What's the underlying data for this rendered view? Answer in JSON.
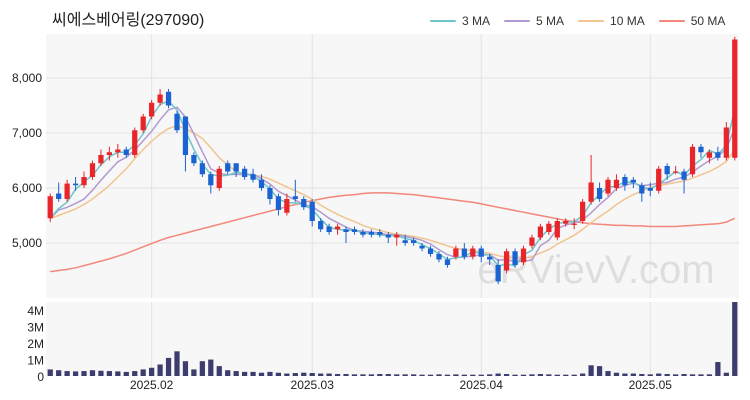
{
  "title": "씨에스베어링(297090)",
  "watermark": "eRVievV.com",
  "legend": [
    {
      "label": "3 MA",
      "color": "#6cc6c9"
    },
    {
      "label": "5 MA",
      "color": "#b19ad0"
    },
    {
      "label": "10 MA",
      "color": "#f2c48f"
    },
    {
      "label": "50 MA",
      "color": "#f2877a"
    }
  ],
  "colors": {
    "up": "#e8252b",
    "down": "#1b63d1",
    "volume": "#3c3c6e",
    "panel_bg": "#f7f7f7",
    "grid": "#e3e3e3"
  },
  "chart_data": [
    {
      "type": "candlestick",
      "title": "씨에스베어링(297090)",
      "ylim": [
        4000,
        8800
      ],
      "yticks": [
        5000,
        6000,
        7000,
        8000
      ],
      "ytick_labels": [
        "5,000",
        "6,000",
        "7,000",
        "8,000"
      ],
      "xticks": [
        {
          "index": 12,
          "label": "2025.02"
        },
        {
          "index": 31,
          "label": "2025.03"
        },
        {
          "index": 51,
          "label": "2025.04"
        },
        {
          "index": 71,
          "label": "2025.05"
        }
      ],
      "candles": [
        [
          5450,
          5900,
          5380,
          5850
        ],
        [
          5900,
          6100,
          5750,
          5800
        ],
        [
          5800,
          6150,
          5750,
          6080
        ],
        [
          6080,
          6200,
          5950,
          6050
        ],
        [
          6050,
          6300,
          6000,
          6200
        ],
        [
          6200,
          6500,
          6150,
          6450
        ],
        [
          6450,
          6700,
          6400,
          6600
        ],
        [
          6600,
          6750,
          6500,
          6650
        ],
        [
          6650,
          6800,
          6550,
          6700
        ],
        [
          6700,
          6750,
          6550,
          6600
        ],
        [
          6600,
          7100,
          6550,
          7050
        ],
        [
          7050,
          7350,
          7000,
          7300
        ],
        [
          7300,
          7600,
          7250,
          7550
        ],
        [
          7550,
          7800,
          7500,
          7700
        ],
        [
          7750,
          7800,
          7450,
          7500
        ],
        [
          7350,
          7400,
          7000,
          7050
        ],
        [
          7300,
          7300,
          6300,
          6600
        ],
        [
          6600,
          6650,
          6400,
          6450
        ],
        [
          6450,
          6500,
          6200,
          6250
        ],
        [
          6250,
          6300,
          5900,
          6050
        ],
        [
          6000,
          6400,
          5950,
          6350
        ],
        [
          6450,
          6500,
          6250,
          6300
        ],
        [
          6450,
          6450,
          6200,
          6300
        ],
        [
          6350,
          6400,
          6150,
          6200
        ],
        [
          6250,
          6350,
          6100,
          6150
        ],
        [
          6150,
          6250,
          5950,
          6000
        ],
        [
          6000,
          6050,
          5700,
          5800
        ],
        [
          5850,
          5900,
          5500,
          5600
        ],
        [
          5550,
          5900,
          5500,
          5800
        ],
        [
          5850,
          6150,
          5750,
          5800
        ],
        [
          5800,
          5850,
          5600,
          5650
        ],
        [
          5750,
          5800,
          5300,
          5400
        ],
        [
          5400,
          5450,
          5200,
          5250
        ],
        [
          5300,
          5350,
          5150,
          5200
        ],
        [
          5250,
          5350,
          5150,
          5300
        ],
        [
          5250,
          5300,
          5000,
          5200
        ],
        [
          5250,
          5300,
          5150,
          5200
        ],
        [
          5200,
          5250,
          5100,
          5150
        ],
        [
          5200,
          5250,
          5100,
          5150
        ],
        [
          5200,
          5250,
          5100,
          5150
        ],
        [
          5150,
          5200,
          5000,
          5100
        ],
        [
          5100,
          5200,
          4950,
          5150
        ],
        [
          5050,
          5150,
          4950,
          5000
        ],
        [
          5050,
          5100,
          4950,
          5000
        ],
        [
          4950,
          5000,
          4850,
          4900
        ],
        [
          4900,
          4950,
          4750,
          4800
        ],
        [
          4800,
          4850,
          4650,
          4700
        ],
        [
          4700,
          4750,
          4550,
          4600
        ],
        [
          4750,
          4950,
          4700,
          4900
        ],
        [
          4900,
          5000,
          4700,
          4750
        ],
        [
          4750,
          4950,
          4700,
          4900
        ],
        [
          4900,
          4950,
          4650,
          4750
        ],
        [
          4750,
          4800,
          4600,
          4700
        ],
        [
          4600,
          4700,
          4250,
          4300
        ],
        [
          4500,
          4900,
          4450,
          4850
        ],
        [
          4850,
          4900,
          4550,
          4600
        ],
        [
          4650,
          4950,
          4600,
          4900
        ],
        [
          4950,
          5150,
          4900,
          5100
        ],
        [
          5100,
          5350,
          5050,
          5300
        ],
        [
          5200,
          5400,
          5150,
          5350
        ],
        [
          5100,
          5450,
          5050,
          5400
        ],
        [
          5350,
          5450,
          5300,
          5400
        ],
        [
          5350,
          5450,
          5250,
          5350
        ],
        [
          5400,
          5800,
          5350,
          5750
        ],
        [
          5750,
          6600,
          5700,
          6100
        ],
        [
          6000,
          6100,
          5750,
          5800
        ],
        [
          5900,
          6200,
          5850,
          6150
        ],
        [
          6000,
          6250,
          5950,
          6150
        ],
        [
          6200,
          6250,
          5950,
          6050
        ],
        [
          6150,
          6200,
          6000,
          6100
        ],
        [
          6050,
          6100,
          5750,
          5900
        ],
        [
          6000,
          6100,
          5850,
          5950
        ],
        [
          5950,
          6400,
          5900,
          6350
        ],
        [
          6400,
          6450,
          6150,
          6250
        ],
        [
          6300,
          6400,
          6250,
          6300
        ],
        [
          6300,
          6350,
          5900,
          6150
        ],
        [
          6250,
          6800,
          6200,
          6750
        ],
        [
          6750,
          6800,
          6550,
          6650
        ],
        [
          6550,
          6700,
          6450,
          6650
        ],
        [
          6650,
          6750,
          6500,
          6550
        ],
        [
          6550,
          7200,
          6500,
          7100
        ],
        [
          6550,
          8750,
          6500,
          8700
        ]
      ],
      "ma": [
        {
          "name": "3 MA",
          "values": [
            5450,
            5625,
            5743,
            5977,
            6110,
            6233,
            6420,
            6567,
            6650,
            6650,
            6783,
            6983,
            7300,
            7517,
            7583,
            7417,
            7050,
            6700,
            6433,
            6250,
            6217,
            6233,
            6283,
            6267,
            6217,
            6117,
            5983,
            5800,
            5733,
            5733,
            5683,
            5617,
            5433,
            5283,
            5250,
            5233,
            5233,
            5183,
            5167,
            5150,
            5133,
            5133,
            5083,
            5050,
            4967,
            4900,
            4800,
            4700,
            4733,
            4750,
            4850,
            4800,
            4783,
            4583,
            4617,
            4583,
            4783,
            4867,
            5100,
            5250,
            5350,
            5383,
            5383,
            5500,
            5733,
            5883,
            6017,
            6033,
            6117,
            6100,
            6017,
            5983,
            6067,
            6183,
            6300,
            6233,
            6400,
            6517,
            6683,
            6617,
            6767,
            7450
          ]
        },
        {
          "name": "5 MA",
          "values": [
            5450,
            5600,
            5650,
            5720,
            5800,
            5960,
            6140,
            6310,
            6475,
            6560,
            6690,
            6860,
            7030,
            7240,
            7420,
            7470,
            7290,
            6980,
            6660,
            6350,
            6270,
            6240,
            6250,
            6240,
            6250,
            6170,
            6070,
            5940,
            5860,
            5780,
            5700,
            5660,
            5560,
            5450,
            5370,
            5290,
            5230,
            5210,
            5200,
            5180,
            5150,
            5150,
            5120,
            5090,
            5050,
            4980,
            4880,
            4790,
            4740,
            4740,
            4770,
            4780,
            4790,
            4690,
            4700,
            4660,
            4670,
            4690,
            4950,
            5050,
            5260,
            5330,
            5360,
            5420,
            5550,
            5700,
            5830,
            5990,
            6050,
            6090,
            6040,
            6060,
            6090,
            6100,
            6160,
            6200,
            6290,
            6400,
            6500,
            6580,
            6710,
            7100
          ]
        },
        {
          "name": "10 MA",
          "values": [
            5450,
            5500,
            5560,
            5620,
            5700,
            5800,
            5920,
            6050,
            6200,
            6350,
            6530,
            6700,
            6850,
            6980,
            7080,
            7130,
            7080,
            7000,
            6900,
            6730,
            6550,
            6420,
            6300,
            6250,
            6240,
            6210,
            6160,
            6090,
            6020,
            5950,
            5880,
            5790,
            5690,
            5600,
            5520,
            5450,
            5390,
            5320,
            5270,
            5230,
            5190,
            5160,
            5140,
            5120,
            5090,
            5050,
            5000,
            4950,
            4900,
            4880,
            4860,
            4840,
            4810,
            4770,
            4740,
            4720,
            4720,
            4750,
            4820,
            4880,
            4980,
            5060,
            5140,
            5250,
            5370,
            5480,
            5580,
            5700,
            5800,
            5880,
            5950,
            6010,
            6040,
            6070,
            6100,
            6130,
            6180,
            6240,
            6300,
            6380,
            6480,
            6700
          ]
        },
        {
          "name": "50 MA",
          "values": [
            4480,
            4500,
            4520,
            4550,
            4590,
            4630,
            4670,
            4710,
            4760,
            4810,
            4870,
            4930,
            4990,
            5050,
            5100,
            5140,
            5180,
            5220,
            5260,
            5300,
            5340,
            5380,
            5420,
            5460,
            5500,
            5540,
            5580,
            5620,
            5660,
            5700,
            5740,
            5770,
            5800,
            5830,
            5850,
            5870,
            5880,
            5900,
            5910,
            5910,
            5910,
            5900,
            5890,
            5880,
            5860,
            5840,
            5820,
            5800,
            5780,
            5760,
            5740,
            5710,
            5680,
            5650,
            5620,
            5590,
            5560,
            5530,
            5500,
            5470,
            5440,
            5410,
            5390,
            5370,
            5350,
            5340,
            5330,
            5320,
            5320,
            5310,
            5310,
            5300,
            5300,
            5300,
            5300,
            5310,
            5320,
            5330,
            5340,
            5350,
            5380,
            5450
          ]
        }
      ]
    },
    {
      "type": "bar",
      "title": "volume",
      "ylim": [
        0,
        4500000
      ],
      "yticks": [
        0,
        1000000,
        2000000,
        3000000,
        4000000
      ],
      "ytick_labels": [
        "0",
        "1M",
        "2M",
        "3M",
        "4M"
      ],
      "values": [
        400000,
        350000,
        300000,
        280000,
        300000,
        350000,
        320000,
        300000,
        280000,
        250000,
        300000,
        400000,
        500000,
        700000,
        1100000,
        1500000,
        900000,
        400000,
        900000,
        1000000,
        600000,
        350000,
        300000,
        250000,
        250000,
        200000,
        250000,
        200000,
        150000,
        180000,
        200000,
        180000,
        150000,
        150000,
        120000,
        120000,
        100000,
        100000,
        100000,
        120000,
        120000,
        100000,
        100000,
        100000,
        80000,
        80000,
        100000,
        80000,
        100000,
        80000,
        80000,
        80000,
        100000,
        150000,
        120000,
        80000,
        80000,
        100000,
        120000,
        100000,
        80000,
        80000,
        80000,
        150000,
        650000,
        600000,
        300000,
        200000,
        150000,
        150000,
        120000,
        100000,
        150000,
        120000,
        100000,
        120000,
        100000,
        100000,
        100000,
        850000,
        200000,
        4500000
      ]
    }
  ]
}
